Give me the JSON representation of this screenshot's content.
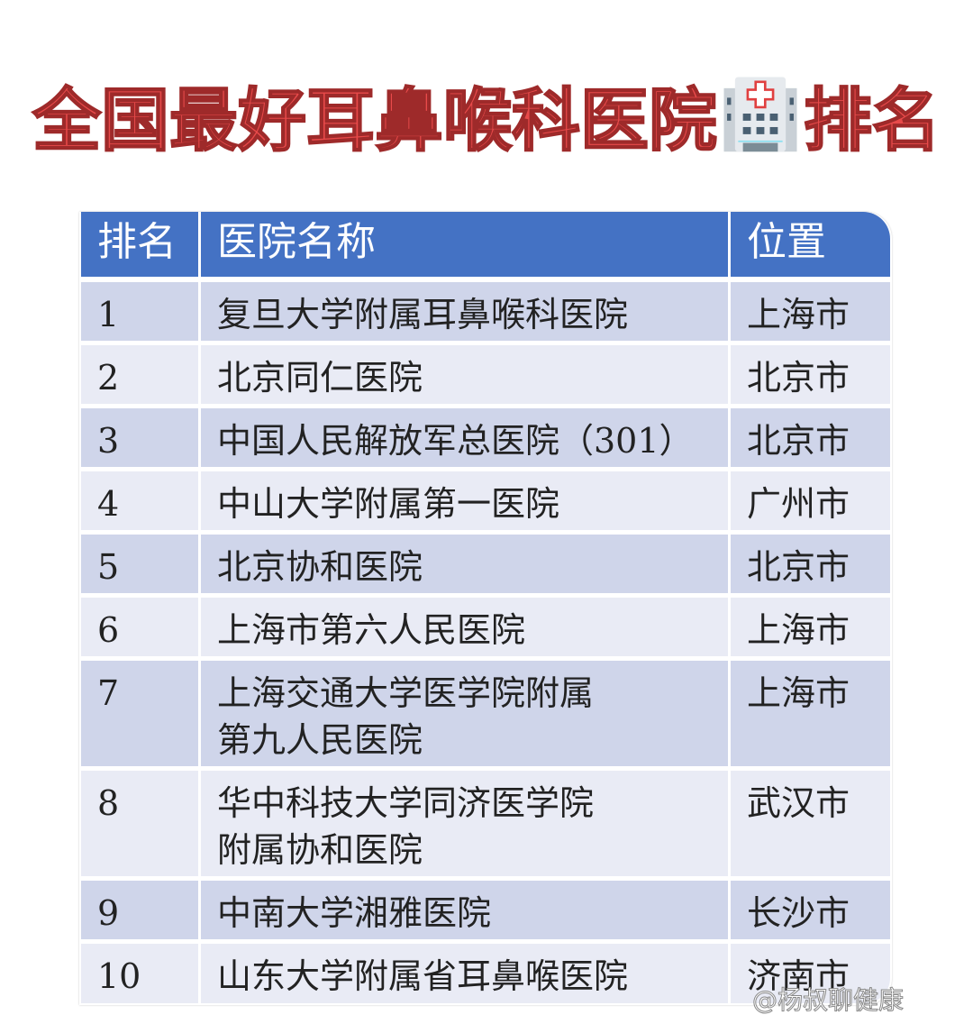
{
  "title": {
    "before": "全国最好耳鼻喉科医院",
    "after": "排名",
    "icon": "hospital-icon"
  },
  "table": {
    "headers": [
      "排名",
      "医院名称",
      "位置"
    ],
    "rows": [
      {
        "rank": "1",
        "name": "复旦大学附属耳鼻喉科医院",
        "location": "上海市"
      },
      {
        "rank": "2",
        "name": "北京同仁医院",
        "location": "北京市"
      },
      {
        "rank": "3",
        "name": "中国人民解放军总医院（301）",
        "location": "北京市"
      },
      {
        "rank": "4",
        "name": "中山大学附属第一医院",
        "location": "广州市"
      },
      {
        "rank": "5",
        "name": "北京协和医院",
        "location": "北京市"
      },
      {
        "rank": "6",
        "name": "上海市第六人民医院",
        "location": "上海市"
      },
      {
        "rank": "7",
        "name": "上海交通大学医学院附属\n第九人民医院",
        "location": "上海市"
      },
      {
        "rank": "8",
        "name": "华中科技大学同济医学院\n附属协和医院",
        "location": "武汉市"
      },
      {
        "rank": "9",
        "name": "中南大学湘雅医院",
        "location": "长沙市"
      },
      {
        "rank": "10",
        "name": "山东大学附属省耳鼻喉医院",
        "location": "济南市"
      }
    ]
  },
  "colors": {
    "header": "#4472c4",
    "row_odd": "#cfd5ea",
    "row_even": "#e9ebf5",
    "title": "#e84a4a"
  },
  "watermark": "@杨叔聊健康"
}
